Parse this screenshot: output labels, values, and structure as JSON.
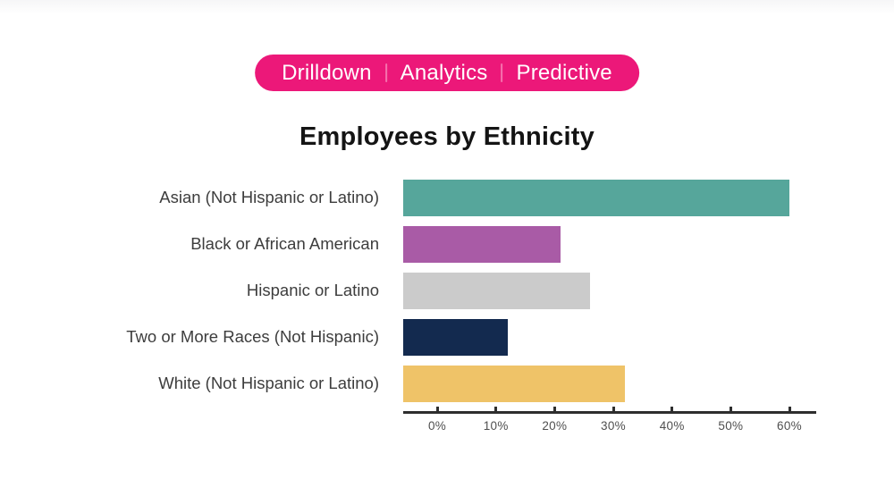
{
  "page": {
    "background": "#ffffff",
    "top_strip_color": "#f6f6f7"
  },
  "badge": {
    "items": [
      "Drilldown",
      "Analytics",
      "Predictive"
    ],
    "background": "#ec1879",
    "text_color": "#ffffff",
    "separator_color": "#f573ae"
  },
  "title": "Employees by Ethnicity",
  "chart_data": {
    "type": "bar",
    "orientation": "horizontal",
    "title": "Employees by Ethnicity",
    "categories": [
      "Asian (Not Hispanic or Latino)",
      "Black or African American",
      "Hispanic or Latino",
      "Two or More Races (Not Hispanic)",
      "White (Not Hispanic or Latino)"
    ],
    "values": [
      60,
      21,
      26,
      12,
      32
    ],
    "unit": "%",
    "bar_colors": [
      "#56a69b",
      "#a95ba6",
      "#cbcbcb",
      "#132a4f",
      "#efc368"
    ],
    "xlabel": "",
    "ylabel": "",
    "x_ticks": [
      "0%",
      "10%",
      "20%",
      "30%",
      "40%",
      "50%",
      "60%"
    ],
    "xlim": [
      0,
      60
    ],
    "grid": false,
    "legend": "none",
    "axis_color": "#2e2e2e"
  }
}
